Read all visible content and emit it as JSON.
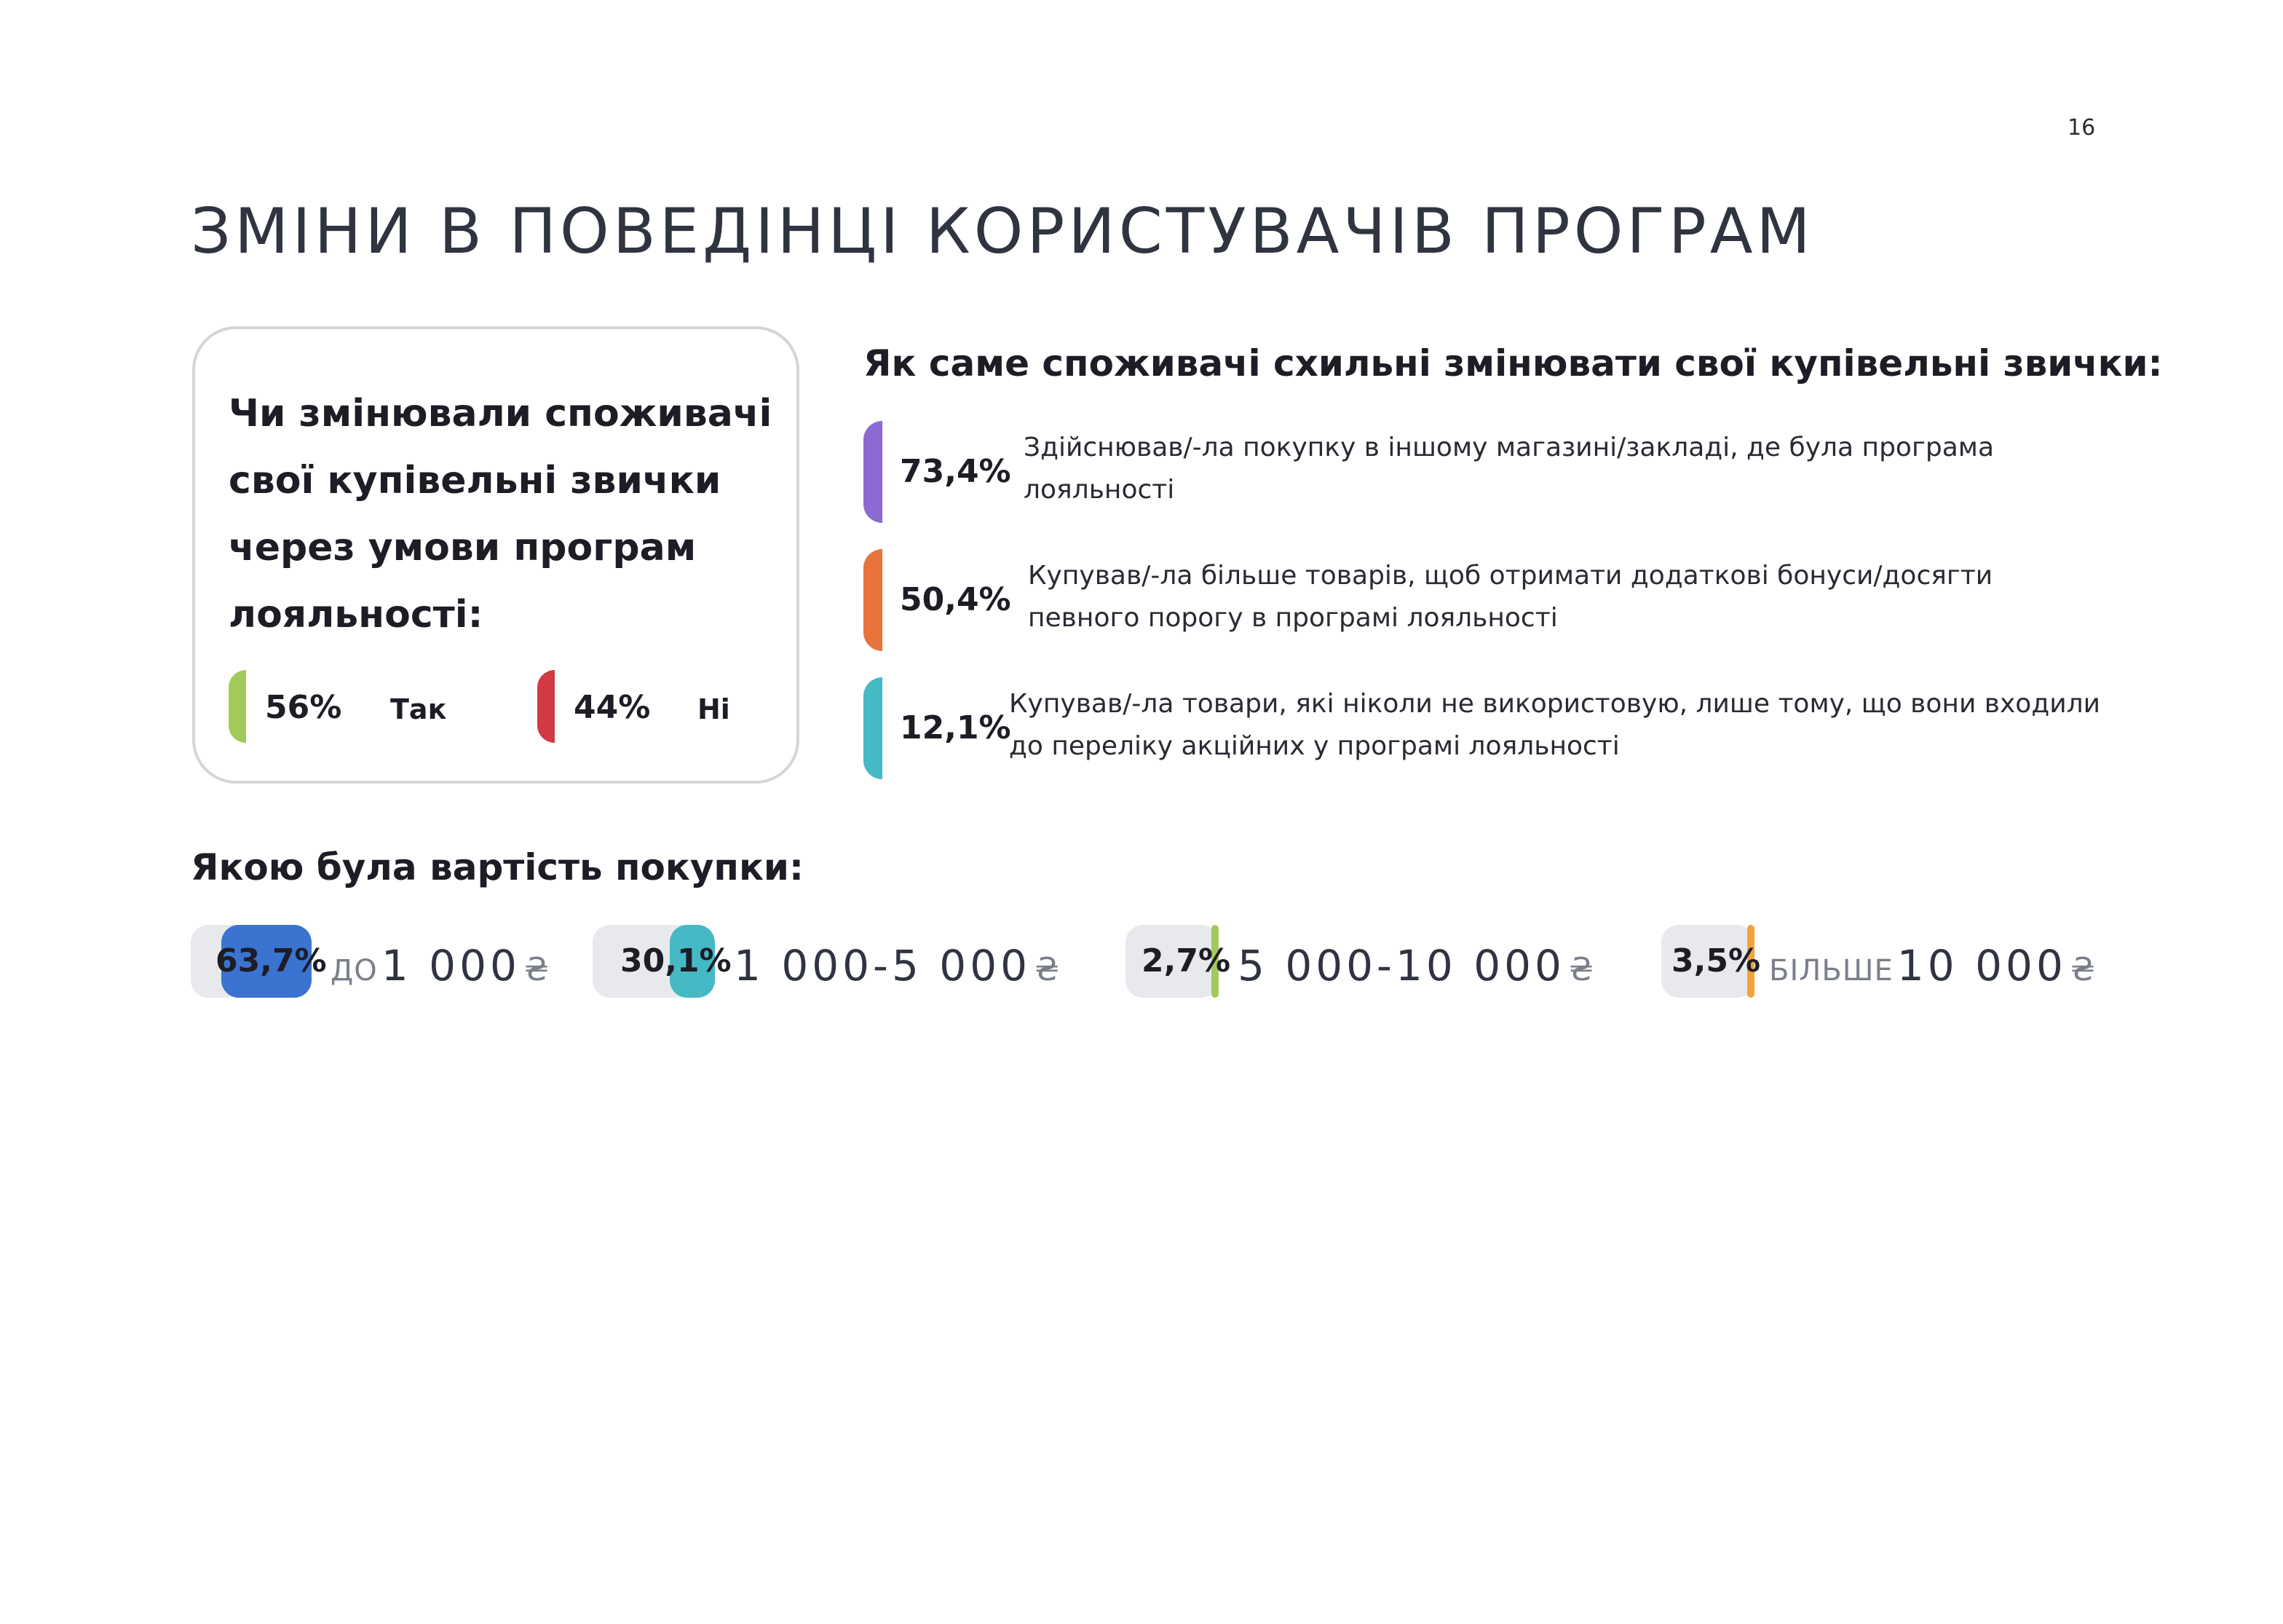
{
  "page": {
    "number": "16",
    "title": "ЗМІНИ В ПОВЕДІНЦІ КОРИСТУВАЧІВ ПРОГРАМ"
  },
  "card": {
    "question": "Чи змінювали споживачі свої купівельні звички через умови програм лояльності:",
    "answers": [
      {
        "percent": "56%",
        "label": "Так",
        "color": "#a3c95a"
      },
      {
        "percent": "44%",
        "label": "Ні",
        "color": "#d13a45"
      }
    ]
  },
  "behavior": {
    "title": "Як саме споживачі схильні змінювати свої купівельні звички:",
    "items": [
      {
        "percent": "73,4%",
        "text": "Здійснював/-ла покупку в іншому магазині/закладі, де була програма лояльності",
        "color": "#8b6ad1"
      },
      {
        "percent": "50,4%",
        "text": "Купував/-ла більше товарів, щоб отримати додаткові бонуси/досягти певного порогу в програмі лояльності",
        "color": "#e8733c"
      },
      {
        "percent": "12,1%",
        "text": "Купував/-ла товари, які ніколи не використовую, лише тому, що вони входили до переліку акційних у програмі лояльності",
        "color": "#45b9c4"
      }
    ]
  },
  "cost": {
    "title": "Якою була вартість покупки:",
    "items": [
      {
        "percent": "63,7%",
        "value": 63.7,
        "prefix": "ДО",
        "amount": "1 000",
        "currency": "₴",
        "color": "#3a73d0"
      },
      {
        "percent": "30,1%",
        "value": 30.1,
        "prefix": "",
        "amount": "1 000-5 000",
        "currency": "₴",
        "color": "#45b9c4"
      },
      {
        "percent": "2,7%",
        "value": 2.7,
        "prefix": "",
        "amount": "5 000-10 000",
        "currency": "₴",
        "color": "#a3c95a"
      },
      {
        "percent": "3,5%",
        "value": 3.5,
        "prefix": "БІЛЬШЕ",
        "amount": "10 000",
        "currency": "₴",
        "color": "#f2a33a"
      }
    ]
  }
}
